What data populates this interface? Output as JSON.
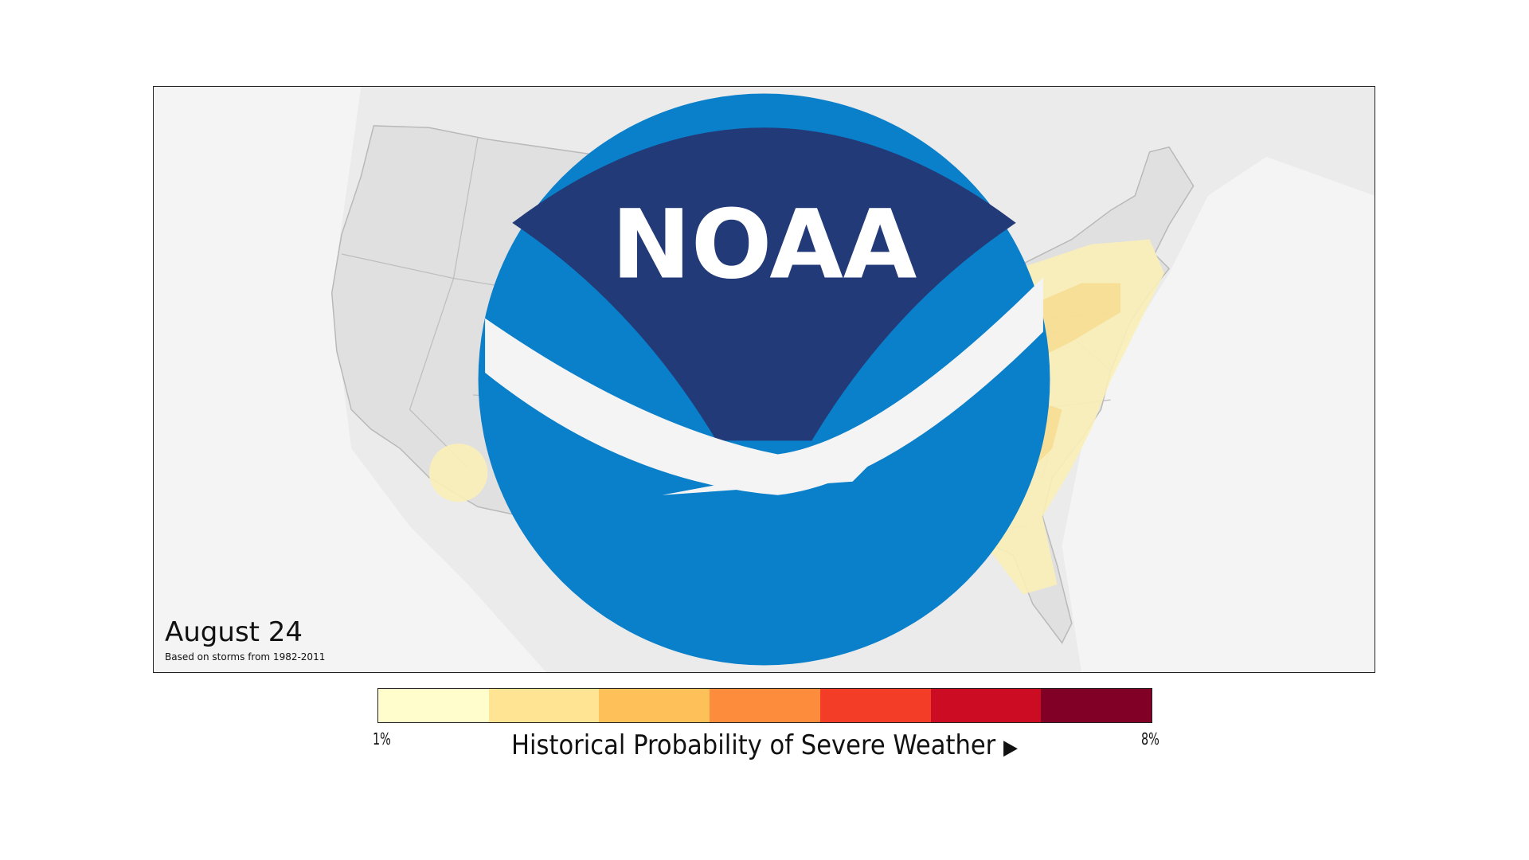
{
  "map": {
    "date": "August 24",
    "subtitle": "Based on storms from 1982-2011",
    "logo": "NOAA",
    "colors": {
      "background": "#f4f4f4",
      "land": "#e2e2e2",
      "borders": "#b8b8b8",
      "level1": "#fbf0b8",
      "level2": "#f7dc92"
    }
  },
  "legend": {
    "title": "Historical Probability of Severe Weather",
    "min_label": "1%",
    "max_label": "8%",
    "arrow_icon": "triangle-right-icon",
    "colors": [
      "#fffdcc",
      "#ffe593",
      "#fec15a",
      "#fd8c3c",
      "#f43d26",
      "#cc0c22",
      "#800026"
    ]
  }
}
